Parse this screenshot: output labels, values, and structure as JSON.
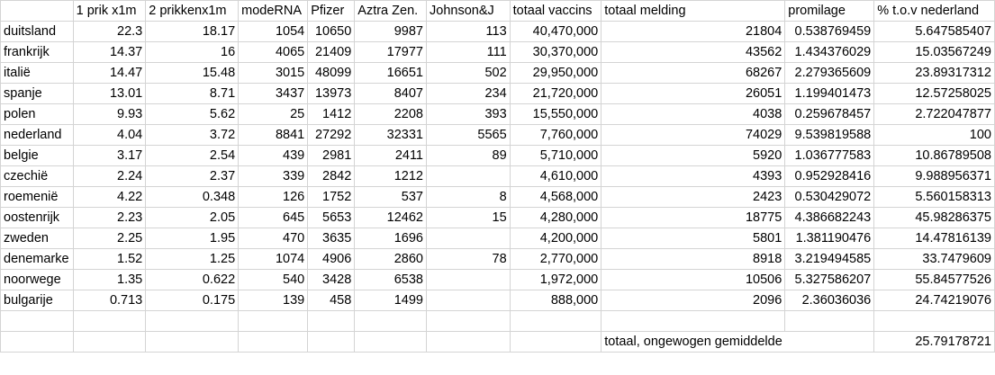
{
  "sheet": {
    "headers": [
      "",
      "1 prik x1m",
      "2 prikkenx1m",
      "modeRNA",
      "Pfizer",
      "Aztra Zen.",
      "Johnson&J",
      "totaal vaccins",
      "totaal melding",
      "promilage",
      "% t.o.v nederland"
    ],
    "rows": [
      [
        "duitsland",
        "22.3",
        "18.17",
        "1054",
        "10650",
        "9987",
        "113",
        "40,470,000",
        "21804",
        "0.538769459",
        "5.647585407"
      ],
      [
        "frankrijk",
        "14.37",
        "16",
        "4065",
        "21409",
        "17977",
        "111",
        "30,370,000",
        "43562",
        "1.434376029",
        "15.03567249"
      ],
      [
        "italië",
        "14.47",
        "15.48",
        "3015",
        "48099",
        "16651",
        "502",
        "29,950,000",
        "68267",
        "2.279365609",
        "23.89317312"
      ],
      [
        "spanje",
        "13.01",
        "8.71",
        "3437",
        "13973",
        "8407",
        "234",
        "21,720,000",
        "26051",
        "1.199401473",
        "12.57258025"
      ],
      [
        "polen",
        "9.93",
        "5.62",
        "25",
        "1412",
        "2208",
        "393",
        "15,550,000",
        "4038",
        "0.259678457",
        "2.722047877"
      ],
      [
        "nederland",
        "4.04",
        "3.72",
        "8841",
        "27292",
        "32331",
        "5565",
        "7,760,000",
        "74029",
        "9.539819588",
        "100"
      ],
      [
        "belgie",
        "3.17",
        "2.54",
        "439",
        "2981",
        "2411",
        "89",
        "5,710,000",
        "5920",
        "1.036777583",
        "10.86789508"
      ],
      [
        "czechië",
        "2.24",
        "2.37",
        "339",
        "2842",
        "1212",
        "",
        "4,610,000",
        "4393",
        "0.952928416",
        "9.988956371"
      ],
      [
        "roemenië",
        "4.22",
        "0.348",
        "126",
        "1752",
        "537",
        "8",
        "4,568,000",
        "2423",
        "0.530429072",
        "5.560158313"
      ],
      [
        "oostenrijk",
        "2.23",
        "2.05",
        "645",
        "5653",
        "12462",
        "15",
        "4,280,000",
        "18775",
        "4.386682243",
        "45.98286375"
      ],
      [
        "zweden",
        "2.25",
        "1.95",
        "470",
        "3635",
        "1696",
        "",
        "4,200,000",
        "5801",
        "1.381190476",
        "14.47816139"
      ],
      [
        "denemarke",
        "1.52",
        "1.25",
        "1074",
        "4906",
        "2860",
        "78",
        "2,770,000",
        "8918",
        "3.219494585",
        "33.7479609"
      ],
      [
        "noorwege",
        "1.35",
        "0.622",
        "540",
        "3428",
        "6538",
        "",
        "1,972,000",
        "10506",
        "5.327586207",
        "55.84577526"
      ],
      [
        "bulgarije",
        "0.713",
        "0.175",
        "139",
        "458",
        "1499",
        "",
        "888,000",
        "2096",
        "2.36036036",
        "24.74219076"
      ]
    ],
    "summary_label": "totaal, ongewogen gemiddelde",
    "summary_value": "25.79178721"
  }
}
